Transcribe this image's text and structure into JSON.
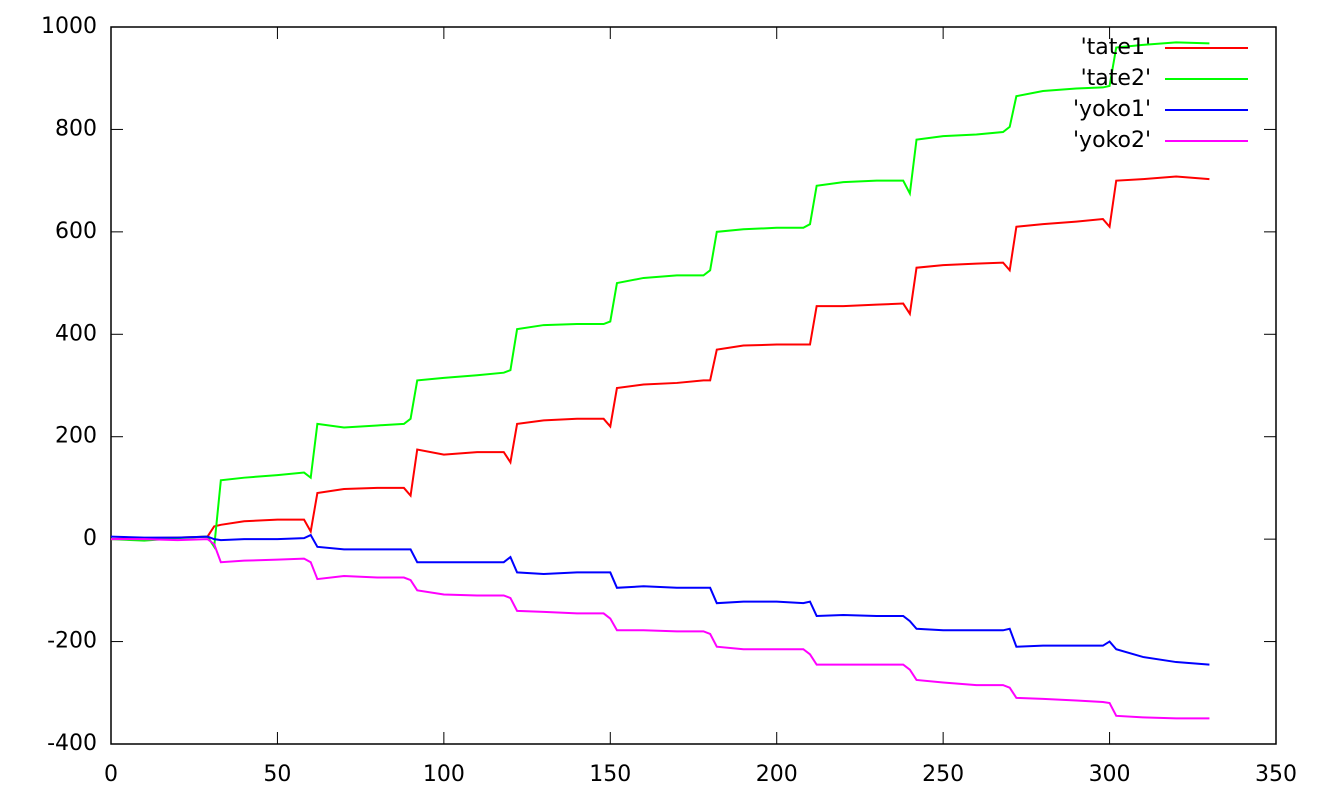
{
  "chart_data": {
    "type": "line",
    "x": [
      0,
      10,
      20,
      29,
      31,
      33,
      40,
      50,
      58,
      60,
      62,
      70,
      80,
      88,
      90,
      92,
      100,
      110,
      118,
      120,
      122,
      130,
      140,
      148,
      150,
      152,
      160,
      170,
      178,
      180,
      182,
      190,
      200,
      208,
      210,
      212,
      220,
      230,
      238,
      240,
      242,
      250,
      260,
      268,
      270,
      272,
      280,
      290,
      298,
      300,
      302,
      310,
      320,
      330
    ],
    "series": [
      {
        "name": "'tate1'",
        "color": "#ff0000",
        "values": [
          0,
          2,
          3,
          5,
          25,
          28,
          35,
          38,
          38,
          15,
          90,
          98,
          100,
          100,
          85,
          175,
          165,
          170,
          170,
          150,
          225,
          232,
          235,
          235,
          220,
          295,
          302,
          305,
          310,
          310,
          370,
          378,
          380,
          380,
          380,
          455,
          455,
          458,
          460,
          440,
          530,
          535,
          538,
          540,
          525,
          610,
          615,
          620,
          625,
          610,
          700,
          703,
          708,
          703
        ]
      },
      {
        "name": "'tate2'",
        "color": "#00ff00",
        "values": [
          0,
          -3,
          2,
          5,
          -15,
          115,
          120,
          125,
          130,
          120,
          225,
          218,
          222,
          225,
          235,
          310,
          315,
          320,
          325,
          330,
          410,
          418,
          420,
          420,
          425,
          500,
          510,
          515,
          515,
          525,
          600,
          605,
          608,
          608,
          615,
          690,
          697,
          700,
          700,
          675,
          780,
          787,
          790,
          795,
          805,
          865,
          875,
          880,
          882,
          885,
          960,
          965,
          970,
          968
        ]
      },
      {
        "name": "'yoko1'",
        "color": "#0000ff",
        "values": [
          5,
          3,
          3,
          5,
          0,
          -2,
          0,
          0,
          2,
          8,
          -15,
          -20,
          -20,
          -20,
          -20,
          -45,
          -45,
          -45,
          -45,
          -35,
          -65,
          -68,
          -65,
          -65,
          -65,
          -95,
          -92,
          -95,
          -95,
          -95,
          -125,
          -122,
          -122,
          -125,
          -122,
          -150,
          -148,
          -150,
          -150,
          -160,
          -175,
          -178,
          -178,
          -178,
          -175,
          -210,
          -208,
          -208,
          -208,
          -200,
          -215,
          -230,
          -240,
          -245
        ]
      },
      {
        "name": "'yoko2'",
        "color": "#ff00ff",
        "values": [
          0,
          0,
          -2,
          0,
          -10,
          -45,
          -42,
          -40,
          -38,
          -45,
          -78,
          -72,
          -75,
          -75,
          -80,
          -100,
          -108,
          -110,
          -110,
          -115,
          -140,
          -142,
          -145,
          -145,
          -155,
          -178,
          -178,
          -180,
          -180,
          -185,
          -210,
          -215,
          -215,
          -215,
          -225,
          -245,
          -245,
          -245,
          -245,
          -255,
          -275,
          -280,
          -285,
          -285,
          -290,
          -310,
          -312,
          -315,
          -318,
          -320,
          -345,
          -348,
          -350,
          -350
        ]
      }
    ],
    "xlim": [
      0,
      350
    ],
    "xticks": [
      0,
      50,
      100,
      150,
      200,
      250,
      300,
      350
    ],
    "ylim": [
      -400,
      1000
    ],
    "yticks": [
      -400,
      -200,
      0,
      200,
      400,
      600,
      800,
      1000
    ],
    "legend": "upper right"
  }
}
